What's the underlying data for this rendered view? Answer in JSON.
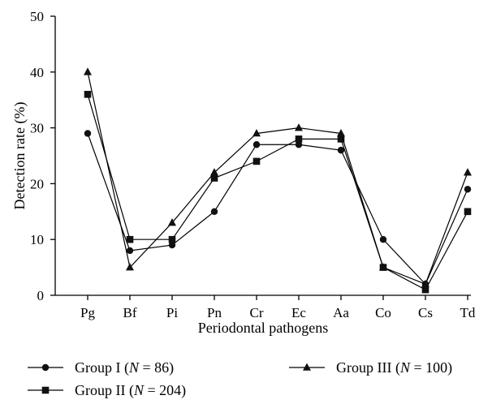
{
  "chart_data": {
    "type": "line",
    "xlabel": "Periodontal pathogens",
    "ylabel": "Detection rate (%)",
    "ylim": [
      0,
      50
    ],
    "yticks": [
      0,
      10,
      20,
      30,
      40,
      50
    ],
    "grid": false,
    "legend_position": "bottom",
    "categories": [
      "Pg",
      "Bf",
      "Pi",
      "Pn",
      "Cr",
      "Ec",
      "Aa",
      "Co",
      "Cs",
      "Td"
    ],
    "series": [
      {
        "id": "group1",
        "name": "Group I (N = 86)",
        "name_prefix": "Group I (",
        "name_var": "N",
        "name_suffix": " = 86)",
        "marker": "circle",
        "values": [
          29,
          8,
          9,
          15,
          27,
          27,
          26,
          10,
          2,
          19
        ]
      },
      {
        "id": "group2",
        "name": "Group II (N = 204)",
        "name_prefix": "Group II (",
        "name_var": "N",
        "name_suffix": " = 204)",
        "marker": "square",
        "values": [
          36,
          10,
          10,
          21,
          24,
          28,
          28,
          5,
          1,
          15
        ]
      },
      {
        "id": "group3",
        "name": "Group III (N = 100)",
        "name_prefix": "Group III (",
        "name_var": "N",
        "name_suffix": " = 100)",
        "marker": "triangle",
        "values": [
          40,
          5,
          13,
          22,
          29,
          30,
          29,
          5,
          2,
          22
        ]
      }
    ]
  }
}
